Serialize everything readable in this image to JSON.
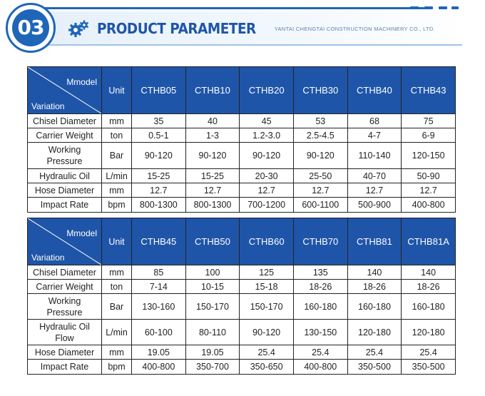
{
  "header": {
    "badge_number": "03",
    "title": "PRODUCT PARAMETER",
    "company": "YANTAI CHENGTAI CONSTRUCTION MACHINERY CO., LTD."
  },
  "table1": {
    "corner_top": "Mmodel",
    "corner_bottom": "Variation",
    "unit_header": "Unit",
    "models": [
      "CTHB05",
      "CTHB10",
      "CTHB20",
      "CTHB30",
      "CTHB40",
      "CTHB43"
    ],
    "rows": [
      {
        "label": "Chisel Diameter",
        "unit": "mm",
        "values": [
          "35",
          "40",
          "45",
          "53",
          "68",
          "75"
        ]
      },
      {
        "label": "Carrier Weight",
        "unit": "ton",
        "values": [
          "0.5-1",
          "1-3",
          "1.2-3.0",
          "2.5-4.5",
          "4-7",
          "6-9"
        ]
      },
      {
        "label_line1": "Working",
        "label_line2": "Pressure",
        "unit": "Bar",
        "values": [
          "90-120",
          "90-120",
          "90-120",
          "90-120",
          "110-140",
          "120-150"
        ]
      },
      {
        "label": "Hydraulic Oil",
        "unit": "L/min",
        "values": [
          "15-25",
          "15-25",
          "20-30",
          "25-50",
          "40-70",
          "50-90"
        ]
      },
      {
        "label": "Hose Diameter",
        "unit": "mm",
        "values": [
          "12.7",
          "12.7",
          "12.7",
          "12.7",
          "12.7",
          "12.7"
        ]
      },
      {
        "label": "Impact Rate",
        "unit": "bpm",
        "values": [
          "800-1300",
          "800-1300",
          "700-1200",
          "600-1100",
          "500-900",
          "400-800"
        ]
      }
    ]
  },
  "table2": {
    "corner_top": "Mmodel",
    "corner_bottom": "Variation",
    "unit_header": "Unit",
    "models": [
      "CTHB45",
      "CTHB50",
      "CTHB60",
      "CTHB70",
      "CTHB81",
      "CTHB81A"
    ],
    "rows": [
      {
        "label": "Chisel Diameter",
        "unit": "mm",
        "values": [
          "85",
          "100",
          "125",
          "135",
          "140",
          "140"
        ]
      },
      {
        "label": "Carrier Weight",
        "unit": "ton",
        "values": [
          "7-14",
          "10-15",
          "15-18",
          "18-26",
          "18-26",
          "18-26"
        ]
      },
      {
        "label_line1": "Working",
        "label_line2": "Pressure",
        "unit": "Bar",
        "values": [
          "130-160",
          "150-170",
          "150-170",
          "160-180",
          "160-180",
          "160-180"
        ]
      },
      {
        "label_line1": "Hydraulic Oil",
        "label_line2": "Flow",
        "unit": "L/min",
        "values": [
          "60-100",
          "80-110",
          "90-120",
          "130-150",
          "120-180",
          "120-180"
        ]
      },
      {
        "label": "Hose Diameter",
        "unit": "mm",
        "values": [
          "19.05",
          "19.05",
          "25.4",
          "25.4",
          "25.4",
          "25.4"
        ]
      },
      {
        "label": "Impact Rate",
        "unit": "bpm",
        "values": [
          "400-800",
          "350-700",
          "350-650",
          "400-800",
          "350-500",
          "350-500"
        ]
      }
    ]
  },
  "colors": {
    "brand_blue": "#1f55a8",
    "accent_blue": "#1f66b8",
    "header_fill": "#1f55a8"
  }
}
